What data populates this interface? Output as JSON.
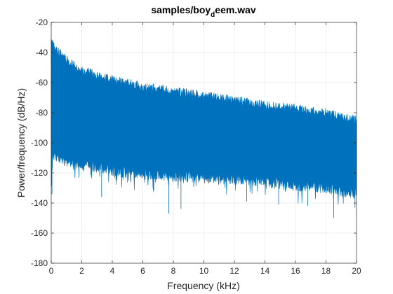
{
  "chart_data": {
    "type": "line",
    "title_main": "samples/boy",
    "title_sub": "d",
    "title_end": "eem.wav",
    "xlabel": "Frequency (kHz)",
    "ylabel": "Power/frequency (dB/Hz)",
    "xlim": [
      0,
      20
    ],
    "ylim": [
      -180,
      -20
    ],
    "xticks": [
      0,
      2,
      4,
      6,
      8,
      10,
      12,
      14,
      16,
      18,
      20
    ],
    "yticks": [
      -180,
      -160,
      -140,
      -120,
      -100,
      -80,
      -60,
      -40,
      -20
    ],
    "grid": true,
    "series": [
      {
        "color": "#0072BD",
        "envelope": {
          "x": [
            0,
            0.1,
            0.3,
            0.5,
            1,
            2,
            3,
            4,
            5,
            6,
            7,
            8,
            9,
            10,
            11,
            12,
            13,
            14,
            15,
            16,
            17,
            18,
            19,
            19.5,
            20
          ],
          "upper": [
            -30,
            -34,
            -38,
            -40,
            -44,
            -52,
            -55,
            -58,
            -60,
            -63,
            -64,
            -66,
            -67,
            -69,
            -70,
            -72,
            -73,
            -75,
            -76,
            -77,
            -79,
            -80,
            -83,
            -84,
            -84
          ],
          "lower": [
            -130,
            -112,
            -108,
            -110,
            -112,
            -114,
            -116,
            -118,
            -120,
            -120,
            -121,
            -122,
            -122,
            -123,
            -124,
            -124,
            -125,
            -126,
            -127,
            -128,
            -129,
            -130,
            -132,
            -133,
            -133
          ]
        },
        "dips": [
          {
            "x": 7.7,
            "y": -147
          },
          {
            "x": 8.5,
            "y": -144
          },
          {
            "x": 3.3,
            "y": -136
          },
          {
            "x": 12.8,
            "y": -139
          },
          {
            "x": 14.9,
            "y": -141
          },
          {
            "x": 18.5,
            "y": -150
          },
          {
            "x": 19.9,
            "y": -143
          },
          {
            "x": 0.05,
            "y": -134
          },
          {
            "x": 16.8,
            "y": -142
          }
        ]
      }
    ]
  }
}
